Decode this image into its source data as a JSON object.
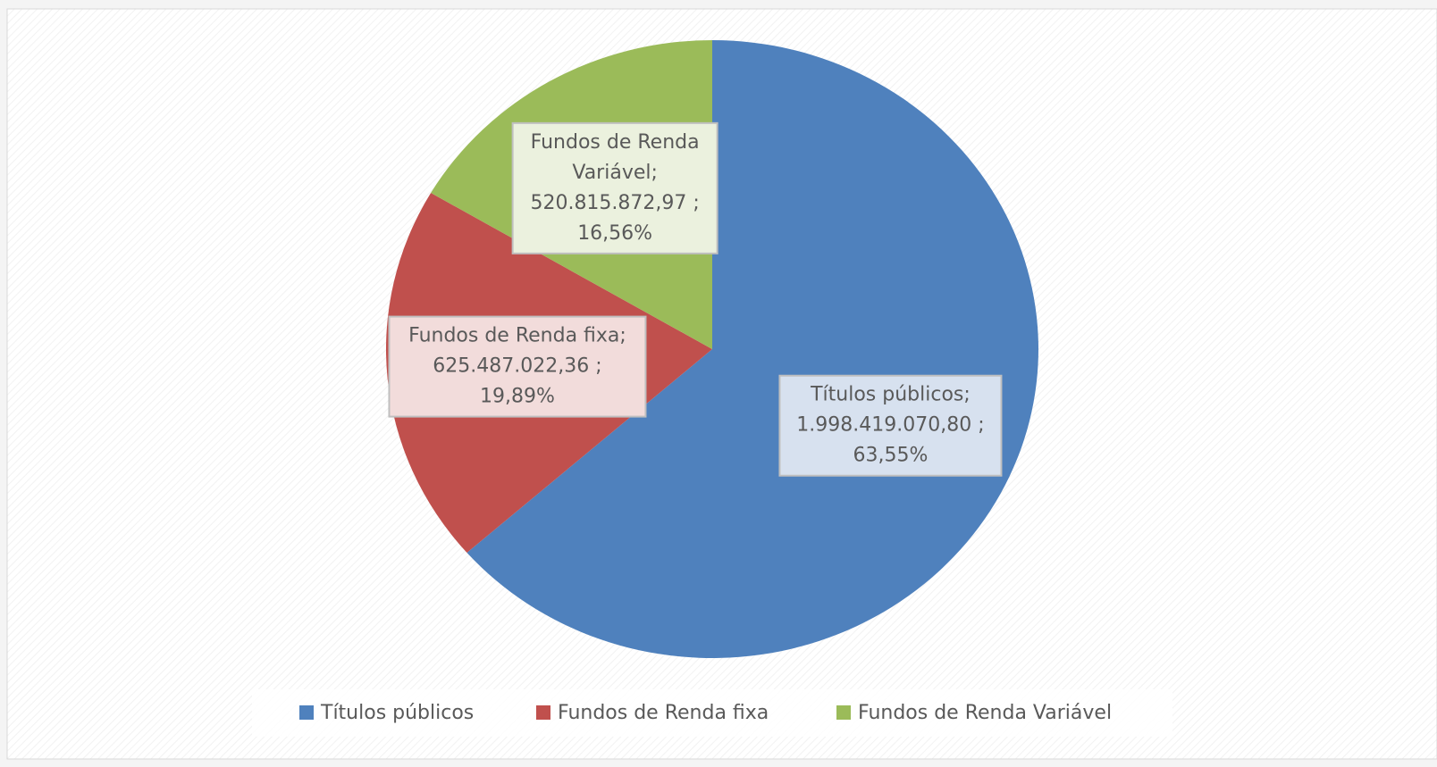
{
  "chart_data": {
    "type": "pie",
    "categories": [
      "Títulos públicos",
      "Fundos de Renda fixa",
      "Fundos de Renda Variável"
    ],
    "values": [
      1998419070.8,
      625487022.36,
      520815872.97
    ],
    "value_labels": [
      "1.998.419.070,80 ;",
      "625.487.022,36 ;",
      "520.815.872,97 ;"
    ],
    "percents": [
      63.55,
      19.89,
      16.56
    ],
    "percent_labels": [
      "63,55%",
      "19,89%",
      "16,56%"
    ],
    "label_titles": [
      [
        "Títulos públicos;"
      ],
      [
        "Fundos de Renda fixa;"
      ],
      [
        "Fundos de Renda",
        "Variável;"
      ]
    ],
    "colors": [
      "#4f81bd",
      "#c0504d",
      "#9bbb59"
    ],
    "label_fills": [
      "#d7e1ef",
      "#f2dcdb",
      "#ebf1de"
    ],
    "legend": "bottom"
  }
}
